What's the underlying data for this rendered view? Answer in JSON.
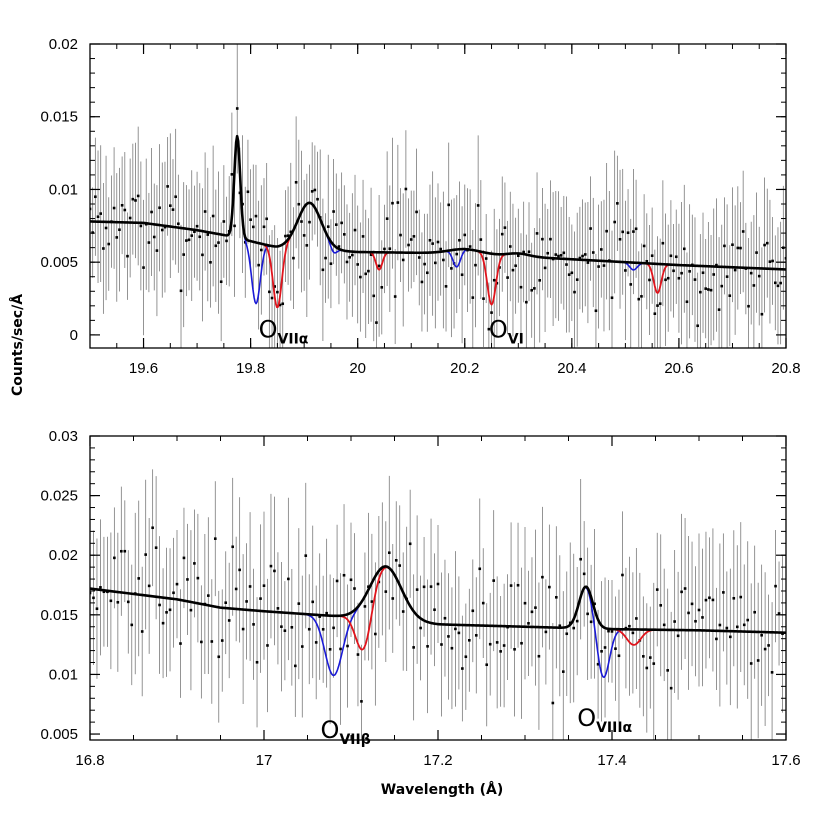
{
  "colors": {
    "data": "#000000",
    "model_black": "#000000",
    "model_red": "#e0141c",
    "model_blue": "#1a1ad6"
  },
  "chart_data": [
    {
      "type": "line",
      "xlim": [
        19.5,
        20.8
      ],
      "ylim": [
        -0.0009,
        0.02
      ],
      "xticks": [
        "19.6",
        "19.8",
        "20",
        "20.2",
        "20.4",
        "20.6",
        "20.8"
      ],
      "yticks": [
        "0",
        "0.005",
        "0.01",
        "0.015",
        "0.02"
      ],
      "ylabel": "Counts/sec/Å",
      "xlabel": "",
      "annotations": [
        {
          "main": "O",
          "sub": "VIIα",
          "x": 19.815,
          "y": 0.0005
        },
        {
          "main": "O",
          "sub": "VI",
          "x": 20.245,
          "y": 0.0005
        }
      ],
      "continuum": [
        [
          19.5,
          0.0078
        ],
        [
          19.6,
          0.0077
        ],
        [
          19.7,
          0.0072
        ],
        [
          19.76,
          0.0068
        ],
        [
          19.85,
          0.006
        ],
        [
          20.0,
          0.0057
        ],
        [
          20.2,
          0.0056
        ],
        [
          20.4,
          0.0052
        ],
        [
          20.6,
          0.0048
        ],
        [
          20.8,
          0.0045
        ]
      ],
      "emission": [
        {
          "center": 19.775,
          "amp": 0.007,
          "sigma": 0.0055
        },
        {
          "center": 19.91,
          "amp": 0.0032,
          "sigma": 0.022
        },
        {
          "center": 20.2,
          "amp": 0.0003,
          "sigma": 0.03
        },
        {
          "center": 20.3,
          "amp": 0.0002,
          "sigma": 0.02
        }
      ],
      "series": [
        {
          "color": "#1a1ad6",
          "lines": [
            {
              "center": 19.81,
              "depth": 0.0042,
              "sigma": 0.008
            },
            {
              "center": 19.955,
              "depth": 0.0005,
              "sigma": 0.006
            },
            {
              "center": 20.185,
              "depth": 0.0012,
              "sigma": 0.007
            },
            {
              "center": 20.515,
              "depth": 0.0005,
              "sigma": 0.007
            }
          ]
        },
        {
          "color": "#e0141c",
          "lines": [
            {
              "center": 19.85,
              "depth": 0.0042,
              "sigma": 0.008
            },
            {
              "center": 20.04,
              "depth": 0.0012,
              "sigma": 0.006
            },
            {
              "center": 20.25,
              "depth": 0.0035,
              "sigma": 0.008
            },
            {
              "center": 20.56,
              "depth": 0.002,
              "sigma": 0.007
            }
          ]
        },
        {
          "color": "#000000",
          "lines": []
        }
      ],
      "data_points": {
        "x_start": 19.5,
        "x_end": 20.8,
        "step": 0.005,
        "noise": 0.0025,
        "err": 0.004,
        "seed": 7
      }
    },
    {
      "type": "line",
      "xlim": [
        16.8,
        17.6
      ],
      "ylim": [
        0.0045,
        0.03
      ],
      "xticks": [
        "16.8",
        "17",
        "17.2",
        "17.4",
        "17.6"
      ],
      "yticks": [
        "0.005",
        "0.01",
        "0.015",
        "0.02",
        "0.025",
        "0.03"
      ],
      "ylabel": "",
      "xlabel": "Wavelength (Å)",
      "annotations": [
        {
          "main": "O",
          "sub": "VIIβ",
          "x": 17.065,
          "y": 0.0055
        },
        {
          "main": "O",
          "sub": "VIIIα",
          "x": 17.36,
          "y": 0.0065
        }
      ],
      "continuum": [
        [
          16.8,
          0.0172
        ],
        [
          16.9,
          0.0163
        ],
        [
          16.95,
          0.0156
        ],
        [
          17.0,
          0.0153
        ],
        [
          17.1,
          0.0148
        ],
        [
          17.2,
          0.0142
        ],
        [
          17.3,
          0.014
        ],
        [
          17.4,
          0.0138
        ],
        [
          17.5,
          0.0137
        ],
        [
          17.6,
          0.0135
        ]
      ],
      "emission": [
        {
          "center": 17.14,
          "amp": 0.0045,
          "sigma": 0.018
        },
        {
          "center": 17.37,
          "amp": 0.0035,
          "sigma": 0.008
        }
      ],
      "series": [
        {
          "color": "#1a1ad6",
          "lines": [
            {
              "center": 17.08,
              "depth": 0.005,
              "sigma": 0.01
            },
            {
              "center": 17.39,
              "depth": 0.0042,
              "sigma": 0.007
            }
          ]
        },
        {
          "color": "#e0141c",
          "lines": [
            {
              "center": 17.115,
              "depth": 0.0042,
              "sigma": 0.009
            },
            {
              "center": 17.425,
              "depth": 0.0013,
              "sigma": 0.008
            }
          ]
        },
        {
          "color": "#000000",
          "lines": []
        }
      ],
      "data_points": {
        "x_start": 16.8,
        "x_end": 17.6,
        "step": 0.004,
        "noise": 0.0035,
        "err": 0.0055,
        "seed": 13
      }
    }
  ]
}
